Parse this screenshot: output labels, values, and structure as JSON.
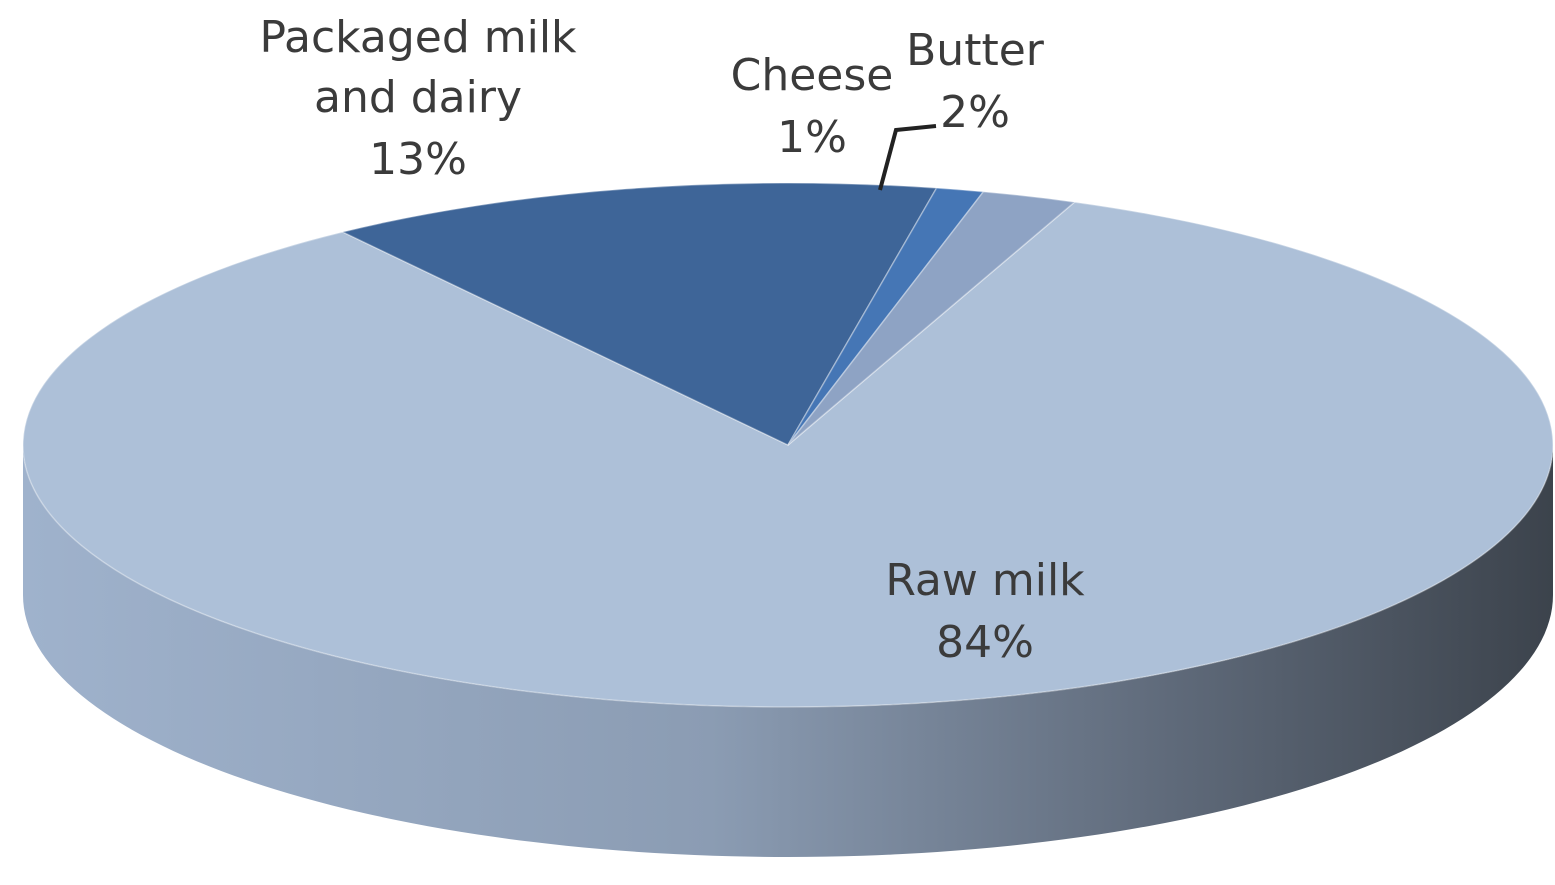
{
  "chart_data": {
    "type": "pie",
    "style": "3d",
    "title": "",
    "slices": [
      {
        "name": "Raw milk",
        "value": 84,
        "value_label": "84%",
        "color": "#adc0d8"
      },
      {
        "name": "Packaged milk and dairy",
        "name_lines": [
          "Packaged milk",
          "and dairy"
        ],
        "value": 13,
        "value_label": "13%",
        "color": "#3e6598"
      },
      {
        "name": "Cheese",
        "value": 1,
        "value_label": "1%",
        "color": "#4576b5"
      },
      {
        "name": "Butter",
        "value": 2,
        "value_label": "2%",
        "color": "#8ea3c4"
      }
    ],
    "legend": "none",
    "labels": "on-slice names with percentages"
  }
}
